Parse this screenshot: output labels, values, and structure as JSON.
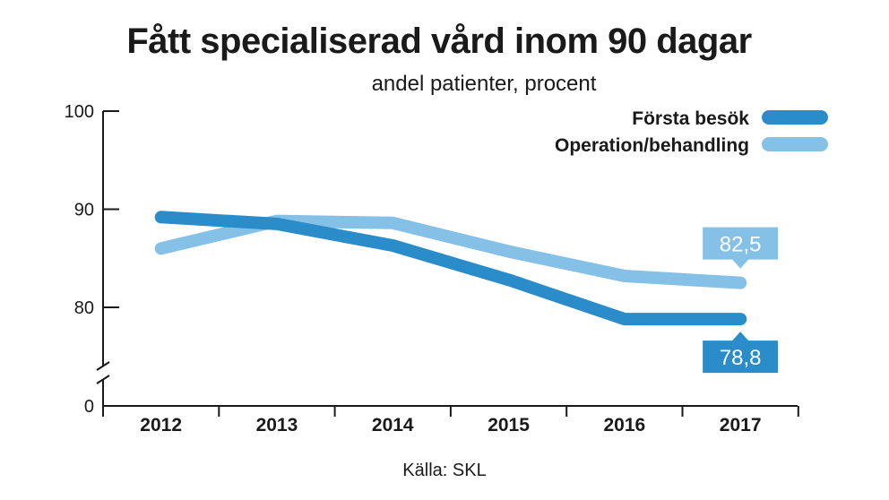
{
  "chart_data": {
    "type": "line",
    "title": "Fått specialiserad vård inom 90 dagar",
    "subtitle": "andel patienter, procent",
    "source": "Källa: SKL",
    "categories": [
      "2012",
      "2013",
      "2014",
      "2015",
      "2016",
      "2017"
    ],
    "y_ticks": [
      "100",
      "90",
      "80",
      "0"
    ],
    "ylim": [
      75,
      100
    ],
    "axis_break": true,
    "series": [
      {
        "name": "Första besök",
        "color": "#2a8cc8",
        "values": [
          89.2,
          88.5,
          86.3,
          82.8,
          78.8,
          78.8
        ],
        "end_label": "78,8"
      },
      {
        "name": "Operation/behandling",
        "color": "#85c0e6",
        "values": [
          86.0,
          88.8,
          88.6,
          85.7,
          83.2,
          82.5
        ],
        "end_label": "82,5"
      }
    ],
    "legend_position": "top-right",
    "grid": false
  }
}
